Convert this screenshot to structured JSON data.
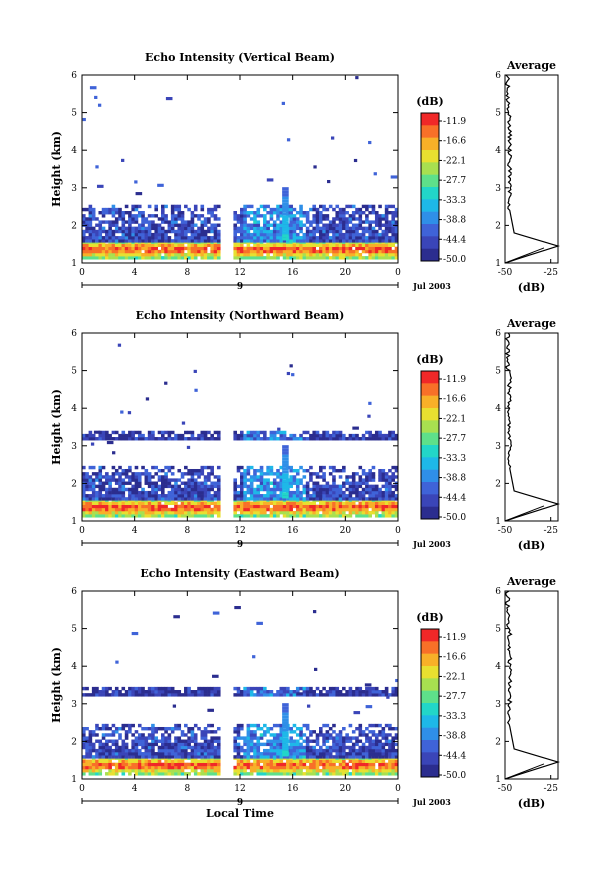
{
  "chart_data": [
    {
      "type": "heatmap",
      "title": "Echo Intensity (Vertical Beam)",
      "ylabel": "Height (km)",
      "xlabel": "",
      "x_ticks": [
        "0",
        "4",
        "8",
        "12",
        "16",
        "20",
        "0"
      ],
      "y_ticks": [
        "1",
        "2",
        "3",
        "4",
        "5",
        "6"
      ],
      "xlim": [
        0,
        24
      ],
      "ylim": [
        1,
        6
      ],
      "day_label": "9",
      "date_label": "Jul 2003",
      "colorbar": {
        "unit": "(dB)",
        "ticks": [
          "-11.9",
          "-16.6",
          "-22.1",
          "-27.7",
          "-33.3",
          "-38.8",
          "-44.4",
          "-50.0"
        ]
      },
      "profile": {
        "title": "Average",
        "xlabel": "(dB)",
        "x_ticks": [
          "-50",
          "-25"
        ],
        "y_ticks": [
          "1",
          "2",
          "3",
          "4",
          "5",
          "6"
        ],
        "xlim": [
          -50,
          -21
        ]
      },
      "data_gap_hours": [
        10.5,
        11.5
      ],
      "layers": [
        {
          "bottom_km": 1.1,
          "top_km": 1.55,
          "value_db": -22
        },
        {
          "bottom_km": 1.55,
          "top_km": 2.5,
          "value_db": -45
        }
      ]
    },
    {
      "type": "heatmap",
      "title": "Echo Intensity (Northward Beam)",
      "ylabel": "Height (km)",
      "xlabel": "",
      "x_ticks": [
        "0",
        "4",
        "8",
        "12",
        "16",
        "20",
        "0"
      ],
      "y_ticks": [
        "1",
        "2",
        "3",
        "4",
        "5",
        "6"
      ],
      "xlim": [
        0,
        24
      ],
      "ylim": [
        1,
        6
      ],
      "day_label": "9",
      "date_label": "Jul 2003",
      "colorbar": {
        "unit": "(dB)",
        "ticks": [
          "-11.9",
          "-16.6",
          "-22.1",
          "-27.7",
          "-33.3",
          "-38.8",
          "-44.4",
          "-50.0"
        ]
      },
      "profile": {
        "title": "Average",
        "xlabel": "(dB)",
        "x_ticks": [
          "-50",
          "-25"
        ],
        "y_ticks": [
          "1",
          "2",
          "3",
          "4",
          "5",
          "6"
        ],
        "xlim": [
          -50,
          -21
        ]
      },
      "data_gap_hours": [
        10.5,
        11.5
      ],
      "layers": [
        {
          "bottom_km": 1.1,
          "top_km": 1.55,
          "value_db": -22
        },
        {
          "bottom_km": 1.55,
          "top_km": 2.4,
          "value_db": -45
        },
        {
          "bottom_km": 3.15,
          "top_km": 3.35,
          "value_db": -47
        }
      ]
    },
    {
      "type": "heatmap",
      "title": "Echo Intensity (Eastward Beam)",
      "ylabel": "Height (km)",
      "xlabel": "Local Time",
      "x_ticks": [
        "0",
        "4",
        "8",
        "12",
        "16",
        "20",
        "0"
      ],
      "y_ticks": [
        "1",
        "2",
        "3",
        "4",
        "5",
        "6"
      ],
      "xlim": [
        0,
        24
      ],
      "ylim": [
        1,
        6
      ],
      "day_label": "9",
      "date_label": "Jul 2003",
      "colorbar": {
        "unit": "(dB)",
        "ticks": [
          "-11.9",
          "-16.6",
          "-22.1",
          "-27.7",
          "-33.3",
          "-38.8",
          "-44.4",
          "-50.0"
        ]
      },
      "profile": {
        "title": "Average",
        "xlabel": "(dB)",
        "x_ticks": [
          "-50",
          "-25"
        ],
        "y_ticks": [
          "1",
          "2",
          "3",
          "4",
          "5",
          "6"
        ],
        "xlim": [
          -50,
          -21
        ]
      },
      "data_gap_hours": [
        10.5,
        11.5
      ],
      "layers": [
        {
          "bottom_km": 1.1,
          "top_km": 1.55,
          "value_db": -22
        },
        {
          "bottom_km": 1.55,
          "top_km": 2.4,
          "value_db": -45
        },
        {
          "bottom_km": 3.2,
          "top_km": 3.45,
          "value_db": -47
        }
      ]
    }
  ],
  "colors": {
    "scale": [
      "#2b2d8f",
      "#3a45b8",
      "#3f63d8",
      "#2f8fe8",
      "#1eb8e8",
      "#22d6c8",
      "#5ee08a",
      "#a8e050",
      "#e8e030",
      "#f8b028",
      "#f87028",
      "#f02828"
    ],
    "profile_line": "#000000",
    "axis": "#000000"
  }
}
